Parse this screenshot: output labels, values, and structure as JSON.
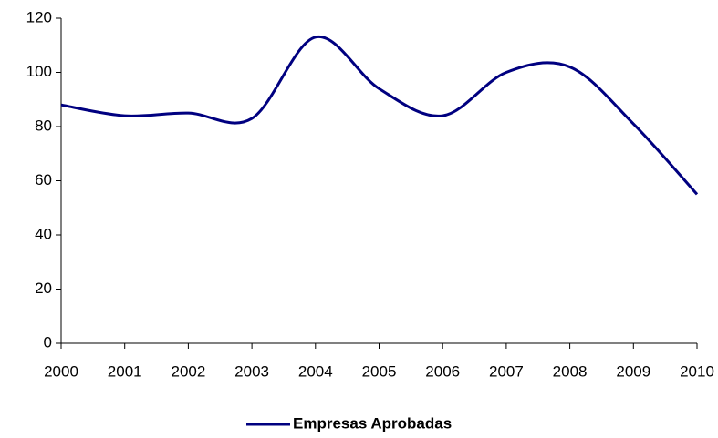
{
  "chart_data": {
    "type": "line",
    "x": [
      2000,
      2001,
      2002,
      2003,
      2004,
      2005,
      2006,
      2007,
      2008,
      2009,
      2010
    ],
    "series": [
      {
        "name": "Empresas Aprobadas",
        "color": "#000080",
        "values": [
          88,
          84,
          85,
          83,
          113,
          94,
          84,
          100,
          102,
          81,
          55
        ]
      }
    ],
    "xlim": [
      2000,
      2010
    ],
    "xticks": [
      2000,
      2001,
      2002,
      2003,
      2004,
      2005,
      2006,
      2007,
      2008,
      2009,
      2010
    ],
    "ylim": [
      0,
      120
    ],
    "yticks": [
      0,
      20,
      40,
      60,
      80,
      100,
      120
    ],
    "grid": false,
    "smooth": true,
    "legend": "bottom"
  }
}
